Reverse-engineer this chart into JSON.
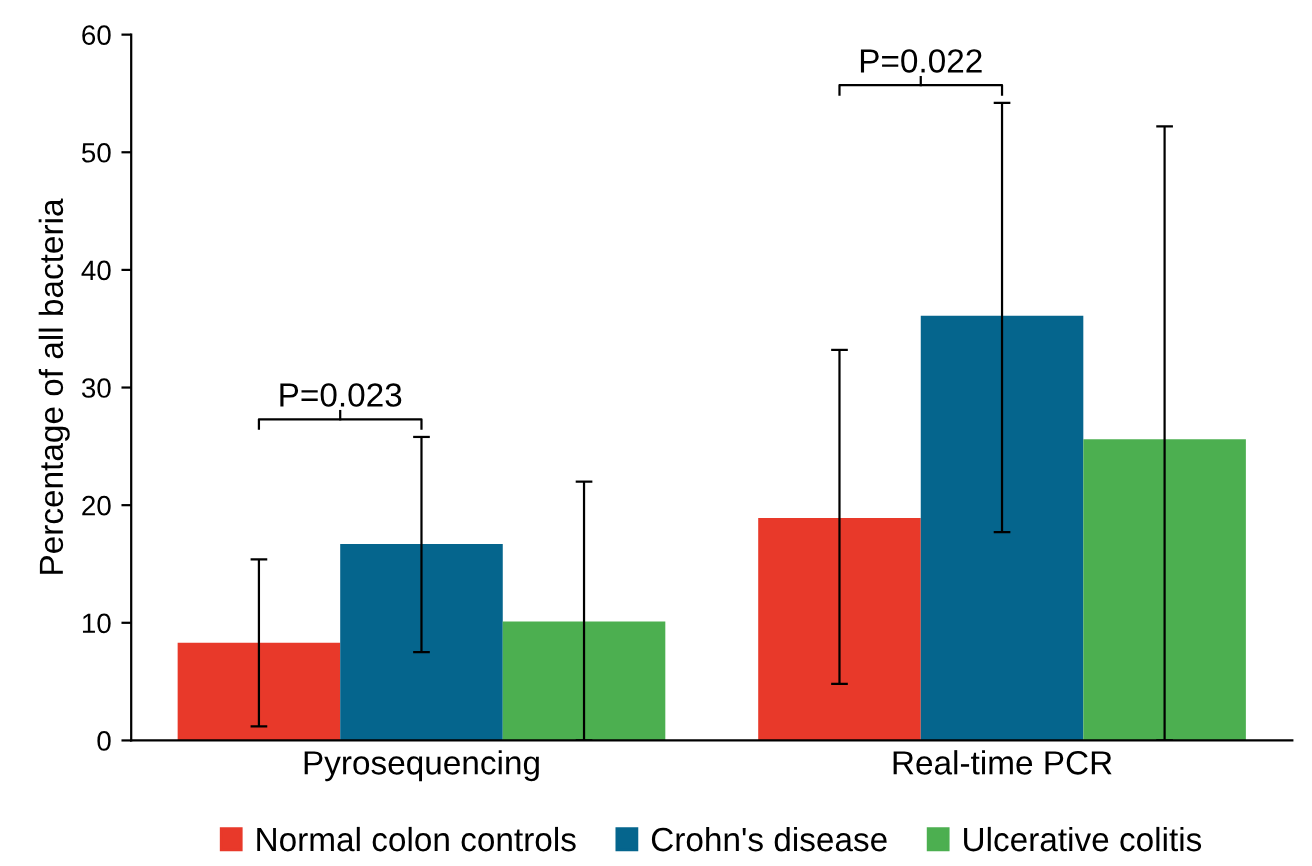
{
  "chart_data": {
    "type": "bar",
    "ylabel": "Percentage of all bacteria",
    "categories": [
      "Pyrosequencing",
      "Real-time PCR"
    ],
    "series": [
      {
        "name": "Normal colon controls",
        "color": "#e8392a",
        "values": [
          8.3,
          18.9
        ],
        "errors": [
          [
            1.2,
            15.4
          ],
          [
            4.8,
            33.2
          ]
        ]
      },
      {
        "name": "Crohn's disease",
        "color": "#05658d",
        "values": [
          16.7,
          36.1
        ],
        "errors": [
          [
            7.5,
            25.8
          ],
          [
            17.7,
            54.2
          ]
        ]
      },
      {
        "name": "Ulcerative colitis",
        "color": "#4caf50",
        "values": [
          10.1,
          25.6
        ],
        "errors": [
          [
            0,
            22
          ],
          [
            0,
            52.2
          ]
        ]
      }
    ],
    "ylim": [
      0,
      60
    ],
    "yticks": [
      0,
      10,
      20,
      30,
      40,
      50,
      60
    ],
    "grid": false,
    "legend": "bottom",
    "annotations": [
      "P=0.023",
      "P=0.022"
    ]
  }
}
